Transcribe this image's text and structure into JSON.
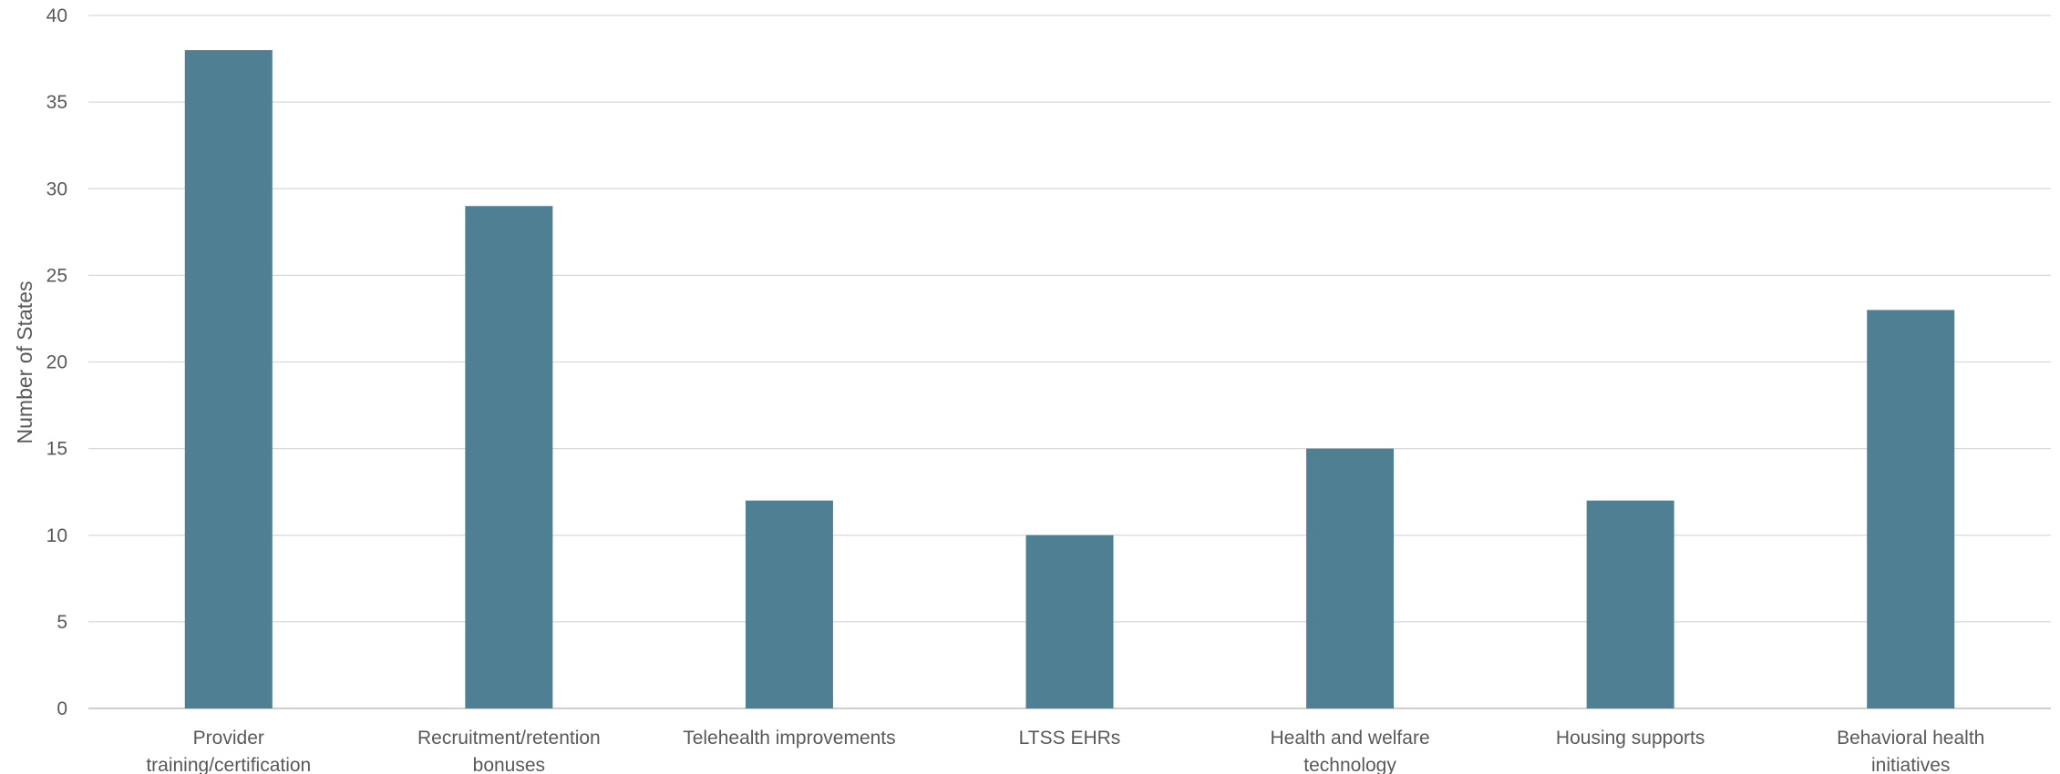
{
  "chart_data": {
    "type": "bar",
    "title": "",
    "xlabel": "",
    "ylabel": "Number of States",
    "ylim": [
      0,
      40
    ],
    "yticks": [
      0,
      5,
      10,
      15,
      20,
      25,
      30,
      35,
      40
    ],
    "grid": true,
    "legend": "none",
    "bar_color": "#4E7F93",
    "categories": [
      "Provider training/certification",
      "Recruitment/retention bonuses",
      "Telehealth improvements",
      "LTSS EHRs",
      "Health and welfare technology",
      "Housing supports",
      "Behavioral health initiatives"
    ],
    "values": [
      38,
      29,
      12,
      10,
      15,
      12,
      23
    ]
  }
}
